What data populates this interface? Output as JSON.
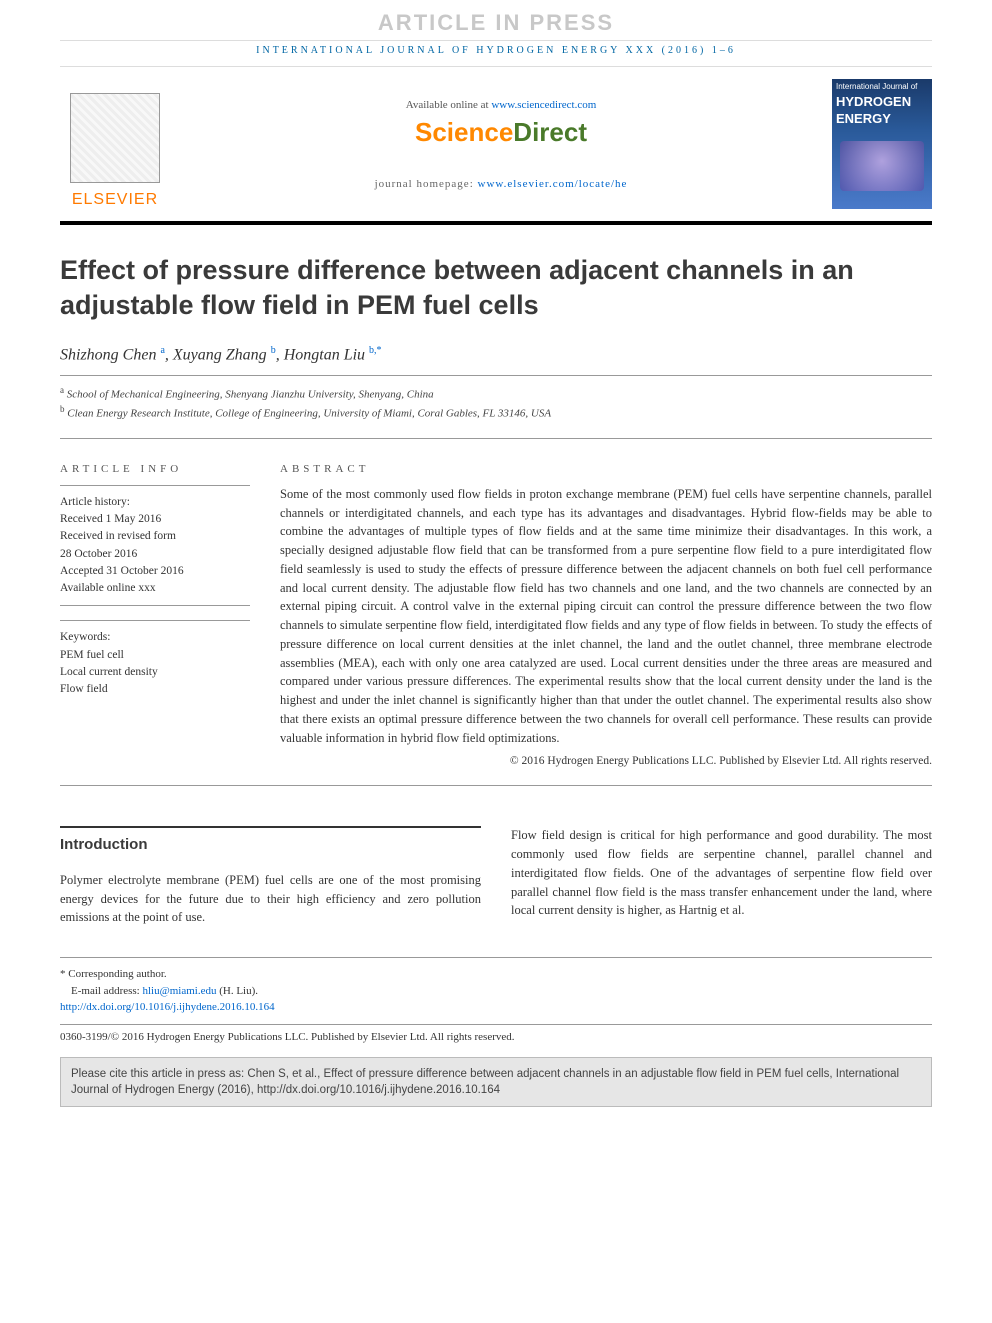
{
  "banner": "ARTICLE IN PRESS",
  "journal_header_line": "INTERNATIONAL JOURNAL OF HYDROGEN ENERGY XXX (2016) 1–6",
  "publisher_logo_text": "ELSEVIER",
  "available_prefix": "Available online at ",
  "available_url": "www.sciencedirect.com",
  "sd_logo_sci": "Science",
  "sd_logo_dir": "Direct",
  "homepage_prefix": "journal homepage: ",
  "homepage_url": "www.elsevier.com/locate/he",
  "cover": {
    "line1": "International Journal of",
    "line2": "HYDROGEN",
    "line3": "ENERGY"
  },
  "title": "Effect of pressure difference between adjacent channels in an adjustable flow field in PEM fuel cells",
  "authors": [
    {
      "name": "Shizhong Chen",
      "aff": "a"
    },
    {
      "name": "Xuyang Zhang",
      "aff": "b"
    },
    {
      "name": "Hongtan Liu",
      "aff": "b",
      "corr": true
    }
  ],
  "affiliations": [
    {
      "mark": "a",
      "text": "School of Mechanical Engineering, Shenyang Jianzhu University, Shenyang, China"
    },
    {
      "mark": "b",
      "text": "Clean Energy Research Institute, College of Engineering, University of Miami, Coral Gables, FL 33146, USA"
    }
  ],
  "info_heading": "ARTICLE INFO",
  "history_label": "Article history:",
  "history": [
    "Received 1 May 2016",
    "Received in revised form",
    "28 October 2016",
    "Accepted 31 October 2016",
    "Available online xxx"
  ],
  "keywords_label": "Keywords:",
  "keywords": [
    "PEM fuel cell",
    "Local current density",
    "Flow field"
  ],
  "abstract_heading": "ABSTRACT",
  "abstract": "Some of the most commonly used flow fields in proton exchange membrane (PEM) fuel cells have serpentine channels, parallel channels or interdigitated channels, and each type has its advantages and disadvantages. Hybrid flow-fields may be able to combine the advantages of multiple types of flow fields and at the same time minimize their disadvantages. In this work, a specially designed adjustable flow field that can be transformed from a pure serpentine flow field to a pure interdigitated flow field seamlessly is used to study the effects of pressure difference between the adjacent channels on both fuel cell performance and local current density. The adjustable flow field has two channels and one land, and the two channels are connected by an external piping circuit. A control valve in the external piping circuit can control the pressure difference between the two flow channels to simulate serpentine flow field, interdigitated flow fields and any type of flow fields in between. To study the effects of pressure difference on local current densities at the inlet channel, the land and the outlet channel, three membrane electrode assemblies (MEA), each with only one area catalyzed are used. Local current densities under the three areas are measured and compared under various pressure differences. The experimental results show that the local current density under the land is the highest and under the inlet channel is significantly higher than that under the outlet channel. The experimental results also show that there exists an optimal pressure difference between the two channels for overall cell performance. These results can provide valuable information in hybrid flow field optimizations.",
  "copyright_abs": "© 2016 Hydrogen Energy Publications LLC. Published by Elsevier Ltd. All rights reserved.",
  "intro_heading": "Introduction",
  "intro_col1": "Polymer electrolyte membrane (PEM) fuel cells are one of the most promising energy devices for the future due to their high efficiency and zero pollution emissions at the point of use.",
  "intro_col2": "Flow field design is critical for high performance and good durability. The most commonly used flow fields are serpentine channel, parallel channel and interdigitated flow fields. One of the advantages of serpentine flow field over parallel channel flow field is the mass transfer enhancement under the land, where local current density is higher, as Hartnig et al.",
  "corr_label": "* Corresponding author.",
  "email_label": "E-mail address: ",
  "email": "hliu@miami.edu",
  "email_suffix": " (H. Liu).",
  "doi": "http://dx.doi.org/10.1016/j.ijhydene.2016.10.164",
  "issn_line": "0360-3199/© 2016 Hydrogen Energy Publications LLC. Published by Elsevier Ltd. All rights reserved.",
  "cite_box": "Please cite this article in press as: Chen S, et al., Effect of pressure difference between adjacent channels in an adjustable flow field in PEM fuel cells, International Journal of Hydrogen Energy (2016), http://dx.doi.org/10.1016/j.ijhydene.2016.10.164",
  "colors": {
    "banner": "#c8c8c8",
    "journal_blue": "#0066a4",
    "elsevier_orange": "#ff7a00",
    "sd_green": "#4a7a2a",
    "sd_orange": "#ff8800",
    "link": "#0066cc",
    "heading": "#3a3a3a",
    "citebox_bg": "#e6e6e6"
  }
}
